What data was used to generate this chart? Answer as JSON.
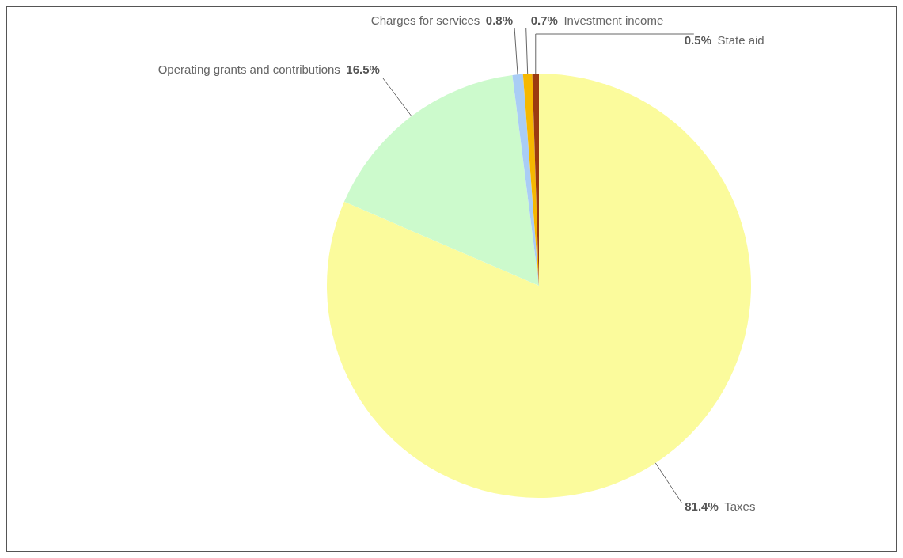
{
  "chart_data": {
    "type": "pie",
    "categories": [
      "Taxes",
      "Operating grants and contributions",
      "Charges for services",
      "Investment income",
      "State aid"
    ],
    "values": [
      81.4,
      16.5,
      0.8,
      0.7,
      0.5
    ],
    "value_labels": [
      "81.4%",
      "16.5%",
      "0.8%",
      "0.7%",
      "0.5%"
    ],
    "colors": [
      "#fbfb9c",
      "#ccfacc",
      "#a9cdf5",
      "#f5b800",
      "#9c3b10"
    ]
  }
}
